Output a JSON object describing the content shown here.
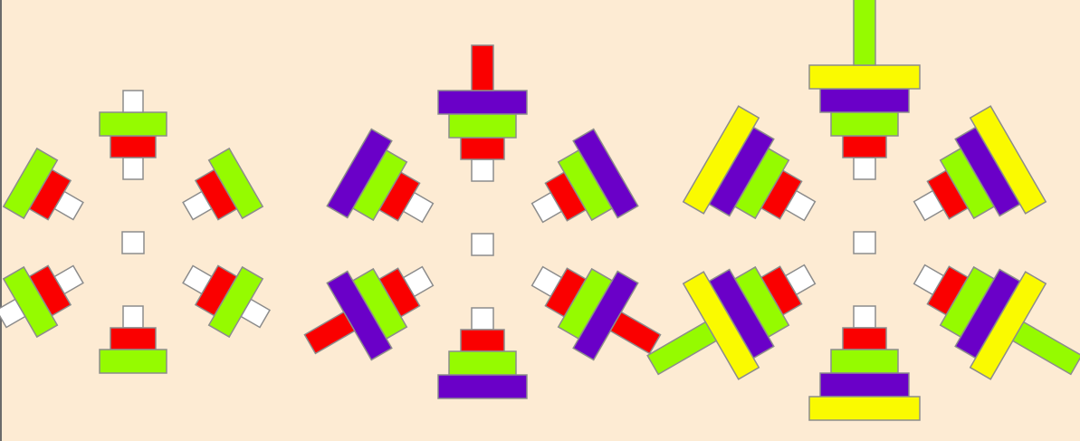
{
  "colors": {
    "background": "#fdebd3",
    "stroke": "#8c8c8c",
    "white": "#ffffff",
    "red": "#fa0000",
    "green": "#95fb00",
    "purple": "#6a00c8",
    "yellow": "#fafa00"
  },
  "groups": [
    {
      "name": "two-disc-group",
      "order": [
        "white",
        "red",
        "green"
      ]
    },
    {
      "name": "three-disc-group",
      "order": [
        "white",
        "red",
        "green",
        "purple"
      ]
    },
    {
      "name": "four-disc-group",
      "order": [
        "white",
        "red",
        "green",
        "purple",
        "yellow"
      ]
    }
  ]
}
